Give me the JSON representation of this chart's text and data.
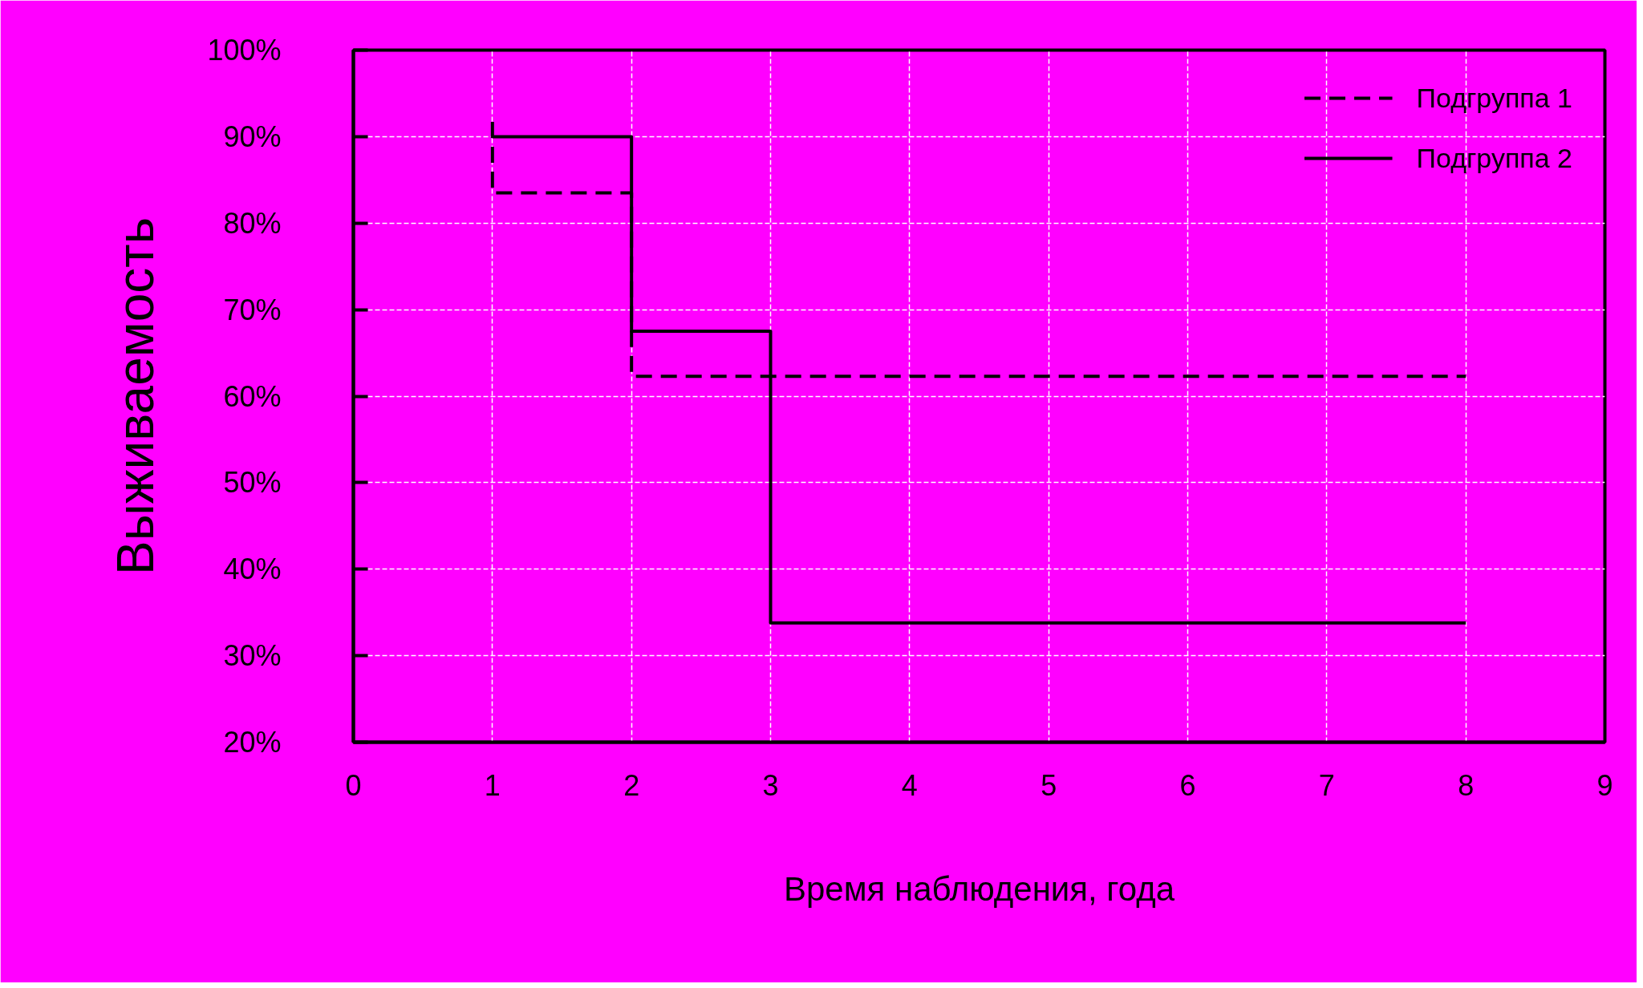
{
  "chart_data": {
    "type": "step",
    "xlabel": "Время наблюдения, года",
    "ylabel": "Выживаемость",
    "xlim": [
      0,
      9
    ],
    "xticks": [
      0,
      1,
      2,
      3,
      4,
      5,
      6,
      7,
      8,
      9
    ],
    "ylim": [
      20,
      100
    ],
    "yticks": [
      {
        "value": 20,
        "label": "20%"
      },
      {
        "value": 30,
        "label": "30%"
      },
      {
        "value": 40,
        "label": "40%"
      },
      {
        "value": 50,
        "label": "50%"
      },
      {
        "value": 60,
        "label": "60%"
      },
      {
        "value": 70,
        "label": "70%"
      },
      {
        "value": 80,
        "label": "80%"
      },
      {
        "value": 90,
        "label": "90%"
      },
      {
        "value": 100,
        "label": "100%"
      }
    ],
    "grid": true,
    "legend": "top right",
    "series": [
      {
        "name": "Подгруппа 1",
        "color": "#000000",
        "line_style": "dashed",
        "x": [
          1,
          1,
          2,
          8
        ],
        "values": [
          91.7,
          83.5,
          62.3,
          62.3
        ]
      },
      {
        "name": "Подгруппа 2",
        "color": "#000000",
        "line_style": "solid",
        "x": [
          1,
          2,
          3,
          8
        ],
        "values": [
          90,
          67.5,
          33.8,
          33.8
        ]
      }
    ]
  }
}
